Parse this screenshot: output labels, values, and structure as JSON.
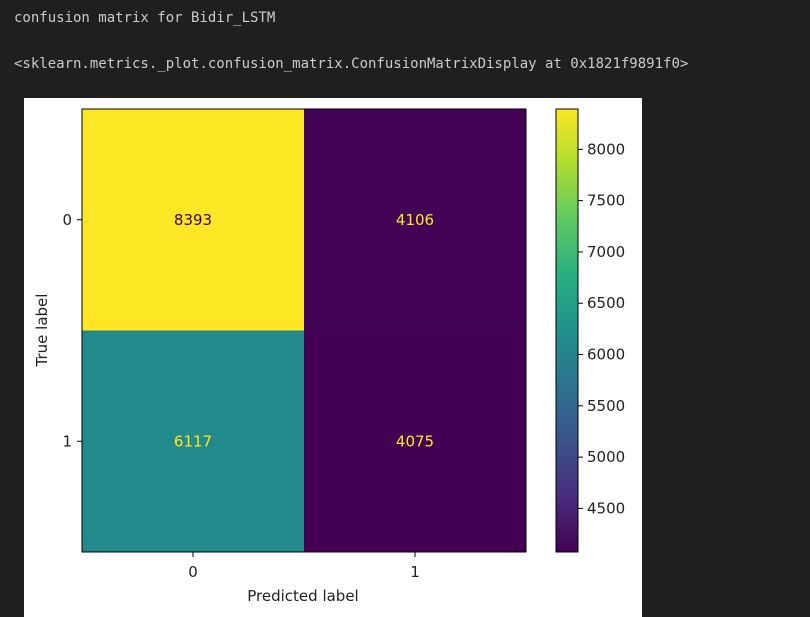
{
  "output": {
    "line1": "confusion matrix for Bidir_LSTM",
    "line2": "<sklearn.metrics._plot.confusion_matrix.ConfusionMatrixDisplay at 0x1821f9891f0>"
  },
  "chart_data": {
    "type": "heatmap",
    "x_categories": [
      "0",
      "1"
    ],
    "y_categories": [
      "0",
      "1"
    ],
    "values": [
      [
        8393,
        4106
      ],
      [
        6117,
        4075
      ]
    ],
    "xlabel": "Predicted label",
    "ylabel": "True label",
    "colormap": "viridis",
    "colorbar": {
      "ticks": [
        "4500",
        "5000",
        "5500",
        "6000",
        "6500",
        "7000",
        "7500",
        "8000"
      ],
      "range": [
        4075,
        8393
      ]
    },
    "colors": {
      "max_cell": "#fde725",
      "min_cell": "#440154",
      "text_on_light": "#440154",
      "text_on_dark": "#fde725"
    }
  }
}
